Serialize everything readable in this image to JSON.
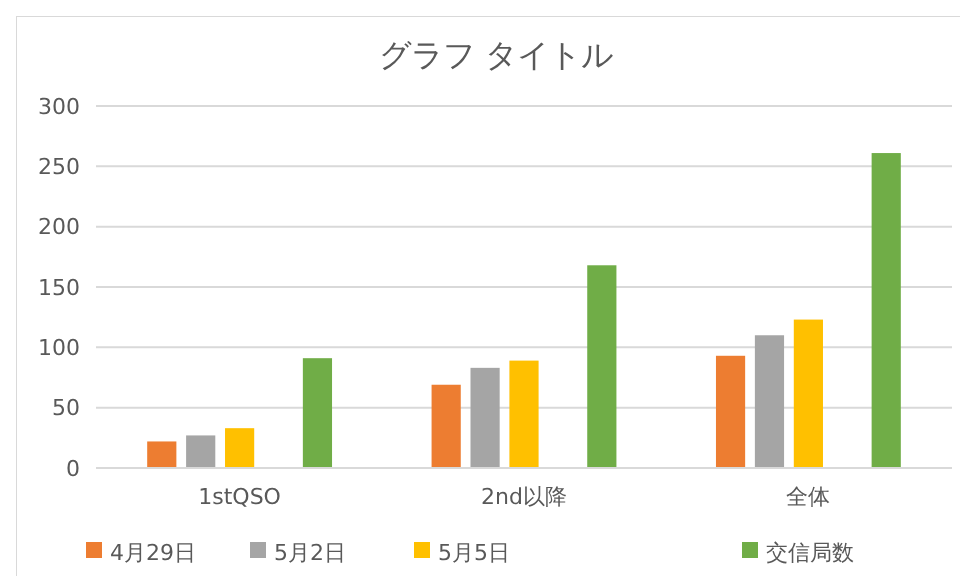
{
  "chart_data": {
    "type": "bar",
    "title": "グラフ タイトル",
    "categories": [
      "1stQSO",
      "2nd以降",
      "全体"
    ],
    "series": [
      {
        "name": "4月29日",
        "color": "#ed7d31",
        "values": [
          22,
          69,
          93
        ]
      },
      {
        "name": "5月2日",
        "color": "#a5a5a5",
        "values": [
          27,
          83,
          110
        ]
      },
      {
        "name": "5月5日",
        "color": "#ffc000",
        "values": [
          33,
          89,
          123
        ]
      },
      {
        "values": [
          null,
          null,
          null
        ]
      },
      {
        "name": "交信局数",
        "color": "#70ad47",
        "values": [
          91,
          168,
          261
        ]
      }
    ],
    "ylim": [
      0,
      300
    ],
    "yticks": [
      0,
      50,
      100,
      150,
      200,
      250,
      300
    ],
    "grid": "y",
    "legend": "bottom"
  }
}
